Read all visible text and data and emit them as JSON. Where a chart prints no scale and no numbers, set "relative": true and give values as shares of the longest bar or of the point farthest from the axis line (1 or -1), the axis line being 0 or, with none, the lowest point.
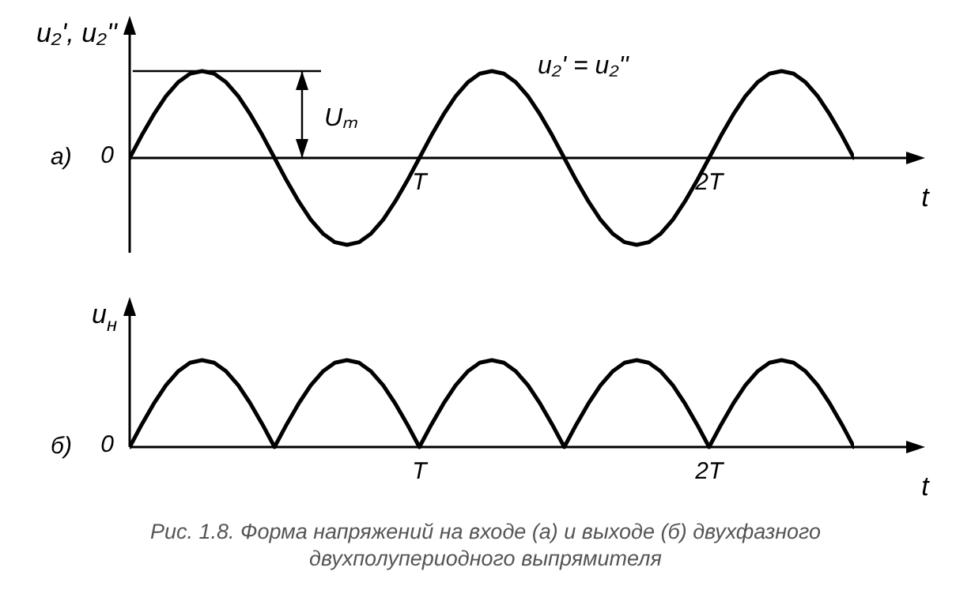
{
  "chart_data": [
    {
      "type": "line",
      "relative": true,
      "ylabel": "u₂', u₂''",
      "xlabel": "t",
      "legend": false,
      "grid": false,
      "marker": "none",
      "line_style": "solid",
      "annotations": [
        "а)",
        "0",
        "Uₘ",
        "u₂' = u₂''"
      ],
      "categories": [
        null,
        null,
        null,
        null,
        null,
        null,
        null,
        null,
        null,
        null,
        null,
        null,
        null,
        null,
        null,
        null,
        null,
        null,
        null,
        null,
        null,
        null,
        null,
        null,
        "T",
        null,
        null,
        null,
        null,
        null,
        null,
        null,
        null,
        null,
        null,
        null,
        null,
        null,
        null,
        null,
        null,
        null,
        null,
        null,
        null,
        null,
        null,
        null,
        "2T",
        null,
        null,
        null,
        null,
        null,
        null,
        null,
        null,
        null,
        null,
        null,
        null
      ],
      "series": [
        {
          "color": "#000000",
          "values": [
            0,
            0.26,
            0.5,
            0.71,
            0.87,
            0.97,
            1,
            0.97,
            0.87,
            0.71,
            0.5,
            0.26,
            0,
            -0.26,
            -0.5,
            -0.71,
            -0.87,
            -0.97,
            -1,
            -0.97,
            -0.87,
            -0.71,
            -0.5,
            -0.26,
            0,
            0.26,
            0.5,
            0.71,
            0.87,
            0.97,
            1,
            0.97,
            0.87,
            0.71,
            0.5,
            0.26,
            0,
            -0.26,
            -0.5,
            -0.71,
            -0.87,
            -0.97,
            -1,
            -0.97,
            -0.87,
            -0.71,
            -0.5,
            -0.26,
            0,
            0.26,
            0.5,
            0.71,
            0.87,
            0.97,
            1,
            0.97,
            0.87,
            0.71,
            0.5,
            0.26,
            0
          ]
        }
      ]
    },
    {
      "type": "line",
      "relative": true,
      "ylabel": "u$_{н}$",
      "xlabel": "t",
      "legend": false,
      "grid": false,
      "marker": "none",
      "line_style": "solid",
      "annotations": [
        "б)",
        "0",
        "Рис. 1.8. Форма напряжений на входе (а) и выходе (б) двухфазного двухполупериодного выпрямителя"
      ],
      "categories": [
        null,
        null,
        null,
        null,
        null,
        null,
        null,
        null,
        null,
        null,
        null,
        null,
        null,
        null,
        null,
        null,
        null,
        null,
        null,
        null,
        null,
        null,
        null,
        null,
        "T",
        null,
        null,
        null,
        null,
        null,
        null,
        null,
        null,
        null,
        null,
        null,
        null,
        null,
        null,
        null,
        null,
        null,
        null,
        null,
        null,
        null,
        null,
        null,
        "2T",
        null,
        null,
        null,
        null,
        null,
        null,
        null,
        null,
        null,
        null,
        null,
        null
      ],
      "series": [
        {
          "color": "#000000",
          "values": [
            0,
            0.26,
            0.5,
            0.71,
            0.87,
            0.97,
            1,
            0.97,
            0.87,
            0.71,
            0.5,
            0.26,
            0,
            0.26,
            0.5,
            0.71,
            0.87,
            0.97,
            1,
            0.97,
            0.87,
            0.71,
            0.5,
            0.26,
            0,
            0.26,
            0.5,
            0.71,
            0.87,
            0.97,
            1,
            0.97,
            0.87,
            0.71,
            0.5,
            0.26,
            0,
            0.26,
            0.5,
            0.71,
            0.87,
            0.97,
            1,
            0.97,
            0.87,
            0.71,
            0.5,
            0.26,
            0,
            0.26,
            0.5,
            0.71,
            0.87,
            0.97,
            1,
            0.97,
            0.87,
            0.71,
            0.5,
            0.26,
            0
          ]
        }
      ]
    }
  ]
}
